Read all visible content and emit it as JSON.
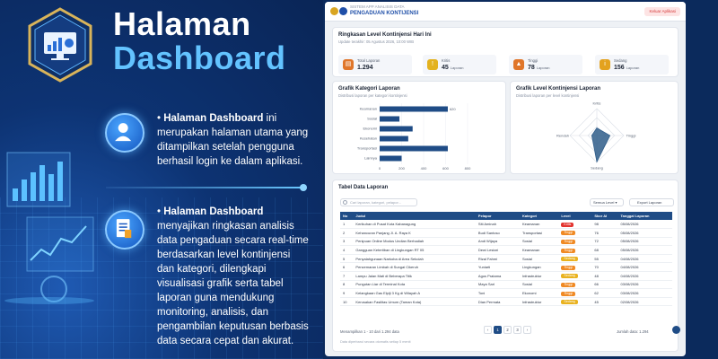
{
  "promo": {
    "title_line1": "Halaman",
    "title_line2": "Dashboard",
    "point1_bold": "Halaman Dashboard",
    "point1_text": " ini merupakan halaman utama yang ditampilkan setelah pengguna berhasil login ke dalam aplikasi.",
    "point2_bold": "Halaman Dashboard",
    "point2_text": " menyajikan ringkasan analisis data pengaduan secara real-time berdasarkan level kontinjensi dan kategori, dilengkapi visualisasi grafik serta tabel laporan guna mendukung monitoring, analisis, dan pengambilan keputusan berbasis data secara cepat dan akurat."
  },
  "app": {
    "subtitle": "SISTEM APP ANALISIS DATA",
    "title": "PENGADUAN KONTIJENSI",
    "logout_label": "Keluar Aplikasi",
    "summary": {
      "title": "Ringkasan Level Kontinjensi Hari Ini",
      "updated": "Update terakhir: 05 Agustus 2026, 10:00 WIB",
      "stats": [
        {
          "label": "Total Laporan",
          "value": "1.294",
          "unit": "",
          "icon": "document-icon",
          "color": "#e0762a"
        },
        {
          "label": "Kritis",
          "value": "45",
          "unit": "Laporan",
          "icon": "alert-icon",
          "color": "#e3b21f"
        },
        {
          "label": "Tinggi",
          "value": "78",
          "unit": "Laporan",
          "icon": "warning-icon",
          "color": "#e0762a"
        },
        {
          "label": "Sedang",
          "value": "156",
          "unit": "Laporan",
          "icon": "info-icon",
          "color": "#e3a21f"
        }
      ]
    },
    "bar_chart": {
      "title": "Grafik Kategori Laporan",
      "subtitle": "Distribusi laporan per kategori kontinjensi"
    },
    "radar_chart": {
      "title": "Grafik Level Kontinjensi Laporan",
      "subtitle": "Distribusi laporan per level kontinjensi"
    },
    "table": {
      "title": "Tabel Data Laporan",
      "search_placeholder": "Cari laporan, kategori, pelapor...",
      "filter_label": "Semua Level",
      "export_label": "Export Laporan",
      "headers": [
        "No",
        "Judul",
        "Pelapor",
        "Kategori",
        "Level",
        "Skor AI",
        "Tanggal Laporan"
      ],
      "rows": [
        [
          "1",
          "Kerikuhan di Pusat Kota Kabanagung",
          "Siti Aminah",
          "Keamanan",
          "Kritis",
          "98",
          "05/08/2026"
        ],
        [
          "2",
          "Kehancuran Panjang Jl. A. Raya K",
          "Budi Santoso",
          "Transportasi",
          "Tinggi",
          "76",
          "05/08/2026"
        ],
        [
          "3",
          "Penipuan Online Modus Undian Berhadiah",
          "Andi Wijaya",
          "Sosial",
          "Tinggi",
          "72",
          "05/08/2026"
        ],
        [
          "4",
          "Gangguan Ketertiban di Lingkungan RT 05",
          "Dewi Lestari",
          "Keamanan",
          "Tinggi",
          "68",
          "05/08/2026"
        ],
        [
          "5",
          "Penyalahgunaan Narkoba di Area Sekolah",
          "Rizal Fahmi",
          "Sosial",
          "Sedang",
          "55",
          "04/08/2026"
        ],
        [
          "6",
          "Pencemaran Limbah di Sungai Cikeruh",
          "Yuniarti",
          "Lingkungan",
          "Tinggi",
          "70",
          "04/08/2026"
        ],
        [
          "7",
          "Lampu Jalan Mati di Beberapa Titik",
          "Agus Pratama",
          "Infrastruktur",
          "Sedang",
          "48",
          "04/08/2026"
        ],
        [
          "8",
          "Pungutan Liar di Terminal Kota",
          "Maya Sari",
          "Sosial",
          "Tinggi",
          "66",
          "03/08/2026"
        ],
        [
          "9",
          "Kelangkaan Gas Elpiji 3 Kg di Wilayah A",
          "Toni",
          "Ekonomi",
          "Tinggi",
          "62",
          "03/08/2026"
        ],
        [
          "10",
          "Kerusakan Fasilitas Umum (Taman Kota)",
          "Dian Permata",
          "Infrastruktur",
          "Sedang",
          "45",
          "02/08/2026"
        ]
      ],
      "level_colors": {
        "Kritis": "#e3342f",
        "Tinggi": "#f08a24",
        "Sedang": "#e9b21f"
      },
      "footer_info": "Menampilkan 1 - 10 dari 1.294 data",
      "pages": [
        "‹",
        "1",
        "2",
        "3",
        "›"
      ],
      "active_page": "1",
      "total": "Jumlah data: 1.294",
      "note": "Data diperbarui secara otomatis setiap 5 menit"
    }
  },
  "chart_data": [
    {
      "type": "bar",
      "orientation": "horizontal",
      "categories": [
        "Keamanan",
        "Sosial",
        "Ekonomi",
        "Kesehatan",
        "Transportasi",
        "Lainnya"
      ],
      "values": [
        620,
        180,
        300,
        260,
        620,
        200
      ],
      "data_labels": [
        "620",
        "",
        "",
        "",
        "",
        ""
      ],
      "xlim": [
        0,
        800
      ],
      "xticks": [
        "0",
        "200",
        "400",
        "600",
        "800"
      ]
    },
    {
      "type": "radar",
      "axes": [
        "Kritis",
        "Tinggi",
        "Sedang",
        "Rendah"
      ],
      "values": [
        45,
        78,
        156,
        30
      ],
      "max": 160,
      "color": "#2f5d8a"
    }
  ]
}
